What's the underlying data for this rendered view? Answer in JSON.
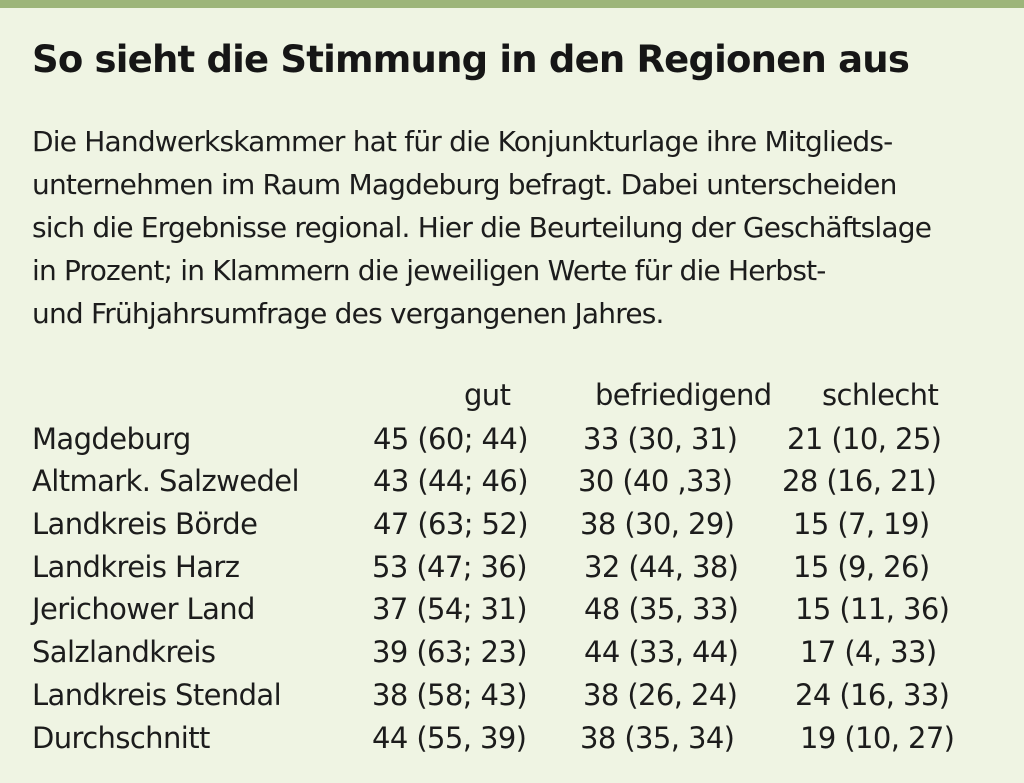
{
  "title": "So sieht die Stimmung in den Regionen aus",
  "intro_lines": [
    "Die Handwerkskammer hat für die Konjunkturlage ihre Mitglieds-",
    "unternehmen im Raum Magdeburg befragt. Dabei unterscheiden",
    "sich die Ergebnisse regional. Hier die Beurteilung der Geschäftslage",
    "in Prozent; in Klammern die jeweiligen Werte für die Herbst-",
    "und Frühjahrsumfrage des vergangenen Jahres."
  ],
  "table": {
    "headers": [
      "gut",
      "befriedigend",
      "schlecht"
    ],
    "rows": [
      {
        "region": "Magdeburg",
        "gut": "45 (60; 44)",
        "befriedigend": "33 (30, 31)",
        "schlecht": "21 (10, 25)"
      },
      {
        "region": "Altmark. Salzwedel",
        "gut": "43 (44; 46)",
        "befriedigend": "30 (40 ,33)",
        "schlecht": "28 (16, 21)"
      },
      {
        "region": "Landkreis Börde",
        "gut": "47 (63; 52)",
        "befriedigend": "38 (30, 29)",
        "schlecht": "15 (7, 19)"
      },
      {
        "region": "Landkreis Harz",
        "gut": "53 (47; 36)",
        "befriedigend": "32 (44, 38)",
        "schlecht": "15 (9, 26)"
      },
      {
        "region": "Jerichower Land",
        "gut": "37 (54; 31)",
        "befriedigend": "48 (35, 33)",
        "schlecht": "15 (11, 36)"
      },
      {
        "region": "Salzlandkreis",
        "gut": "39 (63; 23)",
        "befriedigend": "44 (33, 44)",
        "schlecht": "17 (4, 33)"
      },
      {
        "region": "Landkreis Stendal",
        "gut": "38 (58; 43)",
        "befriedigend": "38 (26, 24)",
        "schlecht": "24 (16, 33)"
      },
      {
        "region": "Durchschnitt",
        "gut": "44 (55, 39)",
        "befriedigend": "38 (35, 34)",
        "schlecht": "19 (10, 27)"
      }
    ]
  },
  "colors": {
    "background": "#eff4e3",
    "top_rule": "#9db57a",
    "text": "#1c1c1c"
  }
}
